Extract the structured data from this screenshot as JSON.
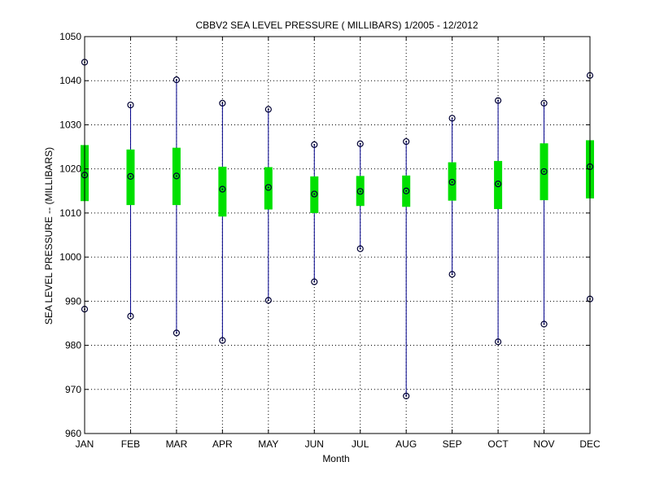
{
  "chart_data": {
    "type": "box",
    "title": "CBBV2  SEA LEVEL PRESSURE ( MILLIBARS) 1/2005 - 12/2012",
    "xlabel": "Month",
    "ylabel": "SEA LEVEL PRESSURE -- (MILLIBARS)",
    "ylim": [
      960,
      1050
    ],
    "yticks": [
      960,
      970,
      980,
      990,
      1000,
      1010,
      1020,
      1030,
      1040,
      1050
    ],
    "grid": true,
    "categories": [
      "JAN",
      "FEB",
      "MAR",
      "APR",
      "MAY",
      "JUN",
      "JUL",
      "AUG",
      "SEP",
      "OCT",
      "NOV",
      "DEC"
    ],
    "max": [
      1044.2,
      1034.5,
      1040.2,
      1034.9,
      1033.5,
      1025.5,
      1025.7,
      1026.2,
      1031.5,
      1035.5,
      1034.9,
      1041.2
    ],
    "upper": [
      1025.4,
      1024.4,
      1024.8,
      1020.5,
      1020.4,
      1018.3,
      1018.4,
      1018.5,
      1021.5,
      1021.8,
      1025.8,
      1026.5
    ],
    "mean": [
      1018.6,
      1018.3,
      1018.4,
      1015.4,
      1015.8,
      1014.3,
      1014.9,
      1015.0,
      1017.0,
      1016.6,
      1019.4,
      1020.5
    ],
    "lower": [
      1012.7,
      1011.8,
      1011.8,
      1009.2,
      1010.8,
      1010.0,
      1011.6,
      1011.4,
      1012.8,
      1010.9,
      1012.9,
      1013.3
    ],
    "min": [
      988.2,
      986.6,
      982.8,
      981.1,
      990.2,
      994.4,
      1001.9,
      968.5,
      996.1,
      980.8,
      984.8,
      990.5
    ],
    "colors": {
      "range_line": "#00008b",
      "box": "#00e000",
      "marker": "#000033",
      "grid": "#000000"
    }
  }
}
